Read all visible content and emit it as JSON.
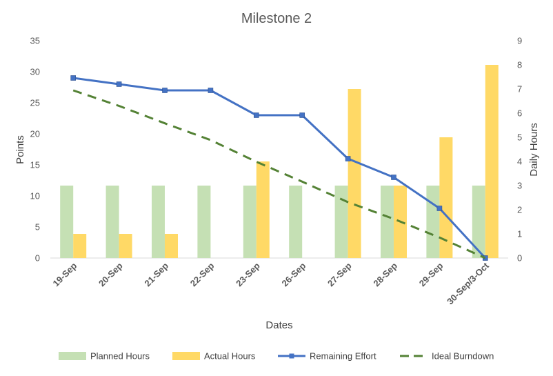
{
  "chart_data": {
    "type": "bar",
    "title": "Milestone 2",
    "xlabel": "Dates",
    "ylabel": "Points",
    "y2label": "Daily Hours",
    "categories": [
      "19-Sep",
      "20-Sep",
      "21-Sep",
      "22-Sep",
      "23-Sep",
      "26-Sep",
      "27-Sep",
      "28-Sep",
      "29-Sep",
      "30-Sep/3-Oct"
    ],
    "ylim": [
      0,
      35
    ],
    "yticks": [
      "0",
      "5",
      "10",
      "15",
      "20",
      "25",
      "30",
      "35"
    ],
    "y2lim": [
      0,
      9
    ],
    "y2ticks": [
      "0",
      "1",
      "2",
      "3",
      "4",
      "5",
      "6",
      "7",
      "8",
      "9"
    ],
    "grid": false,
    "legend_position": "bottom",
    "series": [
      {
        "name": "Planned Hours",
        "type": "bar",
        "axis": "right",
        "color": "#C5E0B4",
        "values": [
          3,
          3,
          3,
          3,
          3,
          3,
          3,
          3,
          3,
          3
        ]
      },
      {
        "name": "Actual Hours",
        "type": "bar",
        "axis": "right",
        "color": "#FFD966",
        "values": [
          1,
          1,
          1,
          0,
          4,
          0,
          7,
          3,
          5,
          8
        ]
      },
      {
        "name": "Remaining Effort",
        "type": "line",
        "axis": "left",
        "color": "#4472C4",
        "marker": "square",
        "values": [
          29,
          28,
          27,
          27,
          23,
          23,
          16,
          13,
          8,
          0
        ]
      },
      {
        "name": "Ideal Burndown",
        "type": "line",
        "axis": "left",
        "color": "#548235",
        "dash": true,
        "values": [
          27,
          24.5,
          21.7,
          19,
          15.5,
          12.3,
          9,
          6.3,
          3.3,
          0
        ]
      }
    ]
  }
}
